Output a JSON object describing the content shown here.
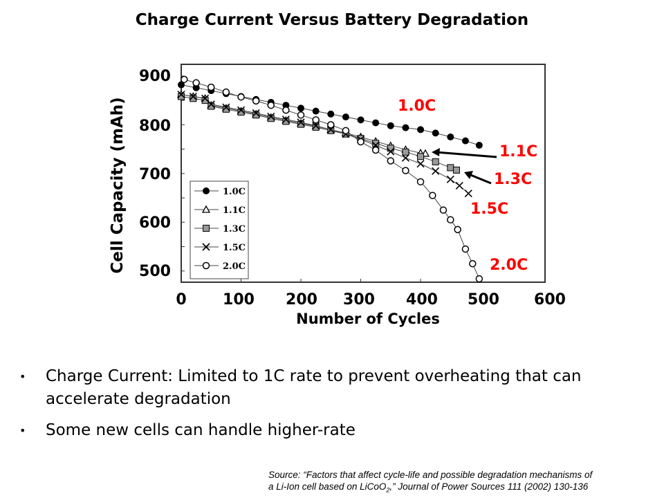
{
  "slide_title": "Charge Current Versus Battery Degradation",
  "chart_data": {
    "type": "line",
    "title": "",
    "xlabel": "Number of Cycles",
    "ylabel": "Cell Capacity (mAh)",
    "xlim": [
      0,
      608
    ],
    "ylim": [
      477,
      924
    ],
    "xticks": [
      "0",
      "100",
      "200",
      "300",
      "400",
      "500",
      "600"
    ],
    "yticks": [
      "900",
      "800",
      "700",
      "600",
      "500"
    ],
    "grid": false,
    "legend_placement": "bottom-left",
    "series": [
      {
        "name": "1.0C",
        "marker": "filled-circle",
        "label": "1.0C",
        "x": [
          0,
          25,
          50,
          75,
          100,
          125,
          150,
          175,
          200,
          225,
          250,
          275,
          300,
          325,
          350,
          375,
          400,
          425,
          450,
          475,
          498
        ],
        "y": [
          882,
          876,
          870,
          864,
          858,
          852,
          846,
          840,
          834,
          828,
          822,
          816,
          810,
          804,
          798,
          794,
          790,
          783,
          775,
          767,
          758
        ]
      },
      {
        "name": "1.1C",
        "marker": "triangle",
        "label": "1.1C",
        "x": [
          0,
          20,
          40,
          50,
          75,
          100,
          125,
          150,
          175,
          200,
          225,
          250,
          275,
          300,
          325,
          350,
          375,
          400,
          408
        ],
        "y": [
          862,
          858,
          854,
          840,
          834,
          828,
          822,
          815,
          809,
          803,
          797,
          790,
          783,
          775,
          766,
          757,
          749,
          742,
          741
        ]
      },
      {
        "name": "1.3C",
        "marker": "gray-square",
        "label": "1.3C",
        "x": [
          0,
          20,
          40,
          50,
          75,
          100,
          125,
          150,
          175,
          200,
          225,
          250,
          275,
          300,
          325,
          350,
          375,
          400,
          425,
          450,
          460
        ],
        "y": [
          858,
          854,
          850,
          838,
          832,
          826,
          820,
          813,
          807,
          801,
          795,
          788,
          781,
          772,
          762,
          752,
          744,
          735,
          724,
          712,
          707
        ]
      },
      {
        "name": "1.5C",
        "marker": "cross",
        "label": "1.5C",
        "x": [
          0,
          20,
          40,
          50,
          75,
          100,
          125,
          150,
          175,
          200,
          225,
          250,
          275,
          300,
          325,
          350,
          375,
          400,
          425,
          450,
          465,
          480
        ],
        "y": [
          862,
          858,
          854,
          842,
          836,
          830,
          824,
          817,
          811,
          805,
          798,
          790,
          781,
          770,
          758,
          745,
          732,
          720,
          705,
          688,
          675,
          659
        ]
      },
      {
        "name": "2.0C",
        "marker": "open-circle",
        "label": "2.0C",
        "x": [
          5,
          25,
          50,
          75,
          100,
          125,
          150,
          175,
          200,
          225,
          250,
          275,
          300,
          325,
          350,
          375,
          400,
          420,
          438,
          450,
          462,
          475,
          487,
          498
        ],
        "y": [
          893,
          886,
          877,
          867,
          857,
          849,
          840,
          830,
          820,
          810,
          800,
          788,
          765,
          748,
          726,
          706,
          683,
          655,
          625,
          605,
          585,
          545,
          515,
          484
        ]
      }
    ],
    "annotations": [
      "1.0C",
      "1.1C",
      "1.3C",
      "1.5C",
      "2.0C"
    ],
    "label_color": "#ff0000"
  },
  "bullets": [
    "Charge Current: Limited to 1C rate to prevent overheating that can accelerate degradation",
    "Some new cells can handle higher-rate"
  ],
  "bullet_glyph": "•",
  "source": {
    "line1": "Source: “Factors that affect cycle-life and possible degradation mechanisms of",
    "line2_pre": "a Li-Ion cell based on LiCoO",
    "line2_sub": "2",
    "line2_post": ",” Journal of Power  Sources 111 (2002) 130-136"
  }
}
